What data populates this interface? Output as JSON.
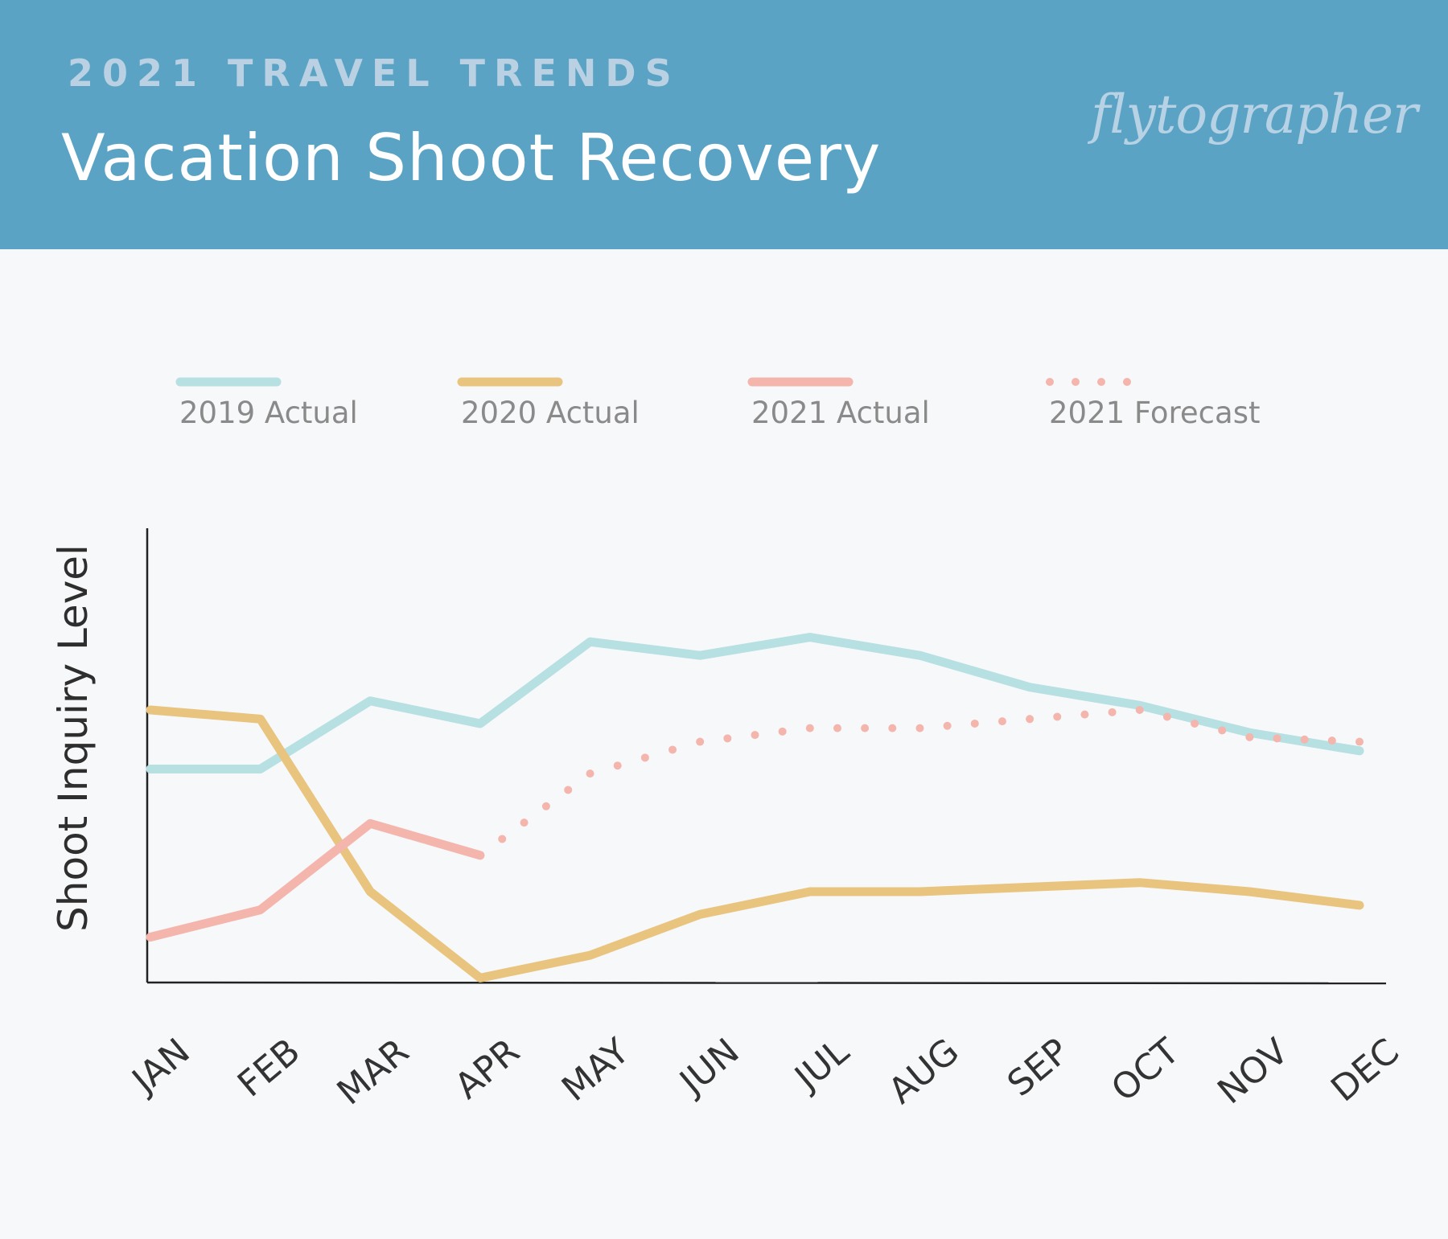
{
  "header": {
    "eyebrow": "2021 TRAVEL TRENDS",
    "title": "Vacation Shoot Recovery",
    "logo_text": "flytographer",
    "background_color": "#5ba3c5"
  },
  "chart_data": {
    "type": "line",
    "title": "Vacation Shoot Recovery",
    "xlabel": "",
    "ylabel": "Shoot Inquiry Level",
    "ylim": [
      0,
      100
    ],
    "y_ticks_labeled": false,
    "grid": false,
    "legend_placement": "top",
    "categories": [
      "JAN",
      "FEB",
      "MAR",
      "APR",
      "MAY",
      "JUN",
      "JUL",
      "AUG",
      "SEP",
      "OCT",
      "NOV",
      "DEC"
    ],
    "series": [
      {
        "name": "2019 Actual",
        "color": "#b6e0e2",
        "style": "solid",
        "values": [
          47,
          47,
          62,
          57,
          75,
          72,
          76,
          72,
          65,
          61,
          55,
          51
        ]
      },
      {
        "name": "2020 Actual",
        "color": "#e8c47f",
        "style": "solid",
        "values": [
          60,
          58,
          20,
          1,
          6,
          15,
          20,
          20,
          21,
          22,
          20,
          17
        ]
      },
      {
        "name": "2021 Actual",
        "color": "#f4b5ad",
        "style": "solid",
        "values": [
          10,
          16,
          35,
          28,
          null,
          null,
          null,
          null,
          null,
          null,
          null,
          null
        ]
      },
      {
        "name": "2021 Forecast",
        "color": "#f4b5ad",
        "style": "dotted",
        "values": [
          null,
          null,
          null,
          28,
          46,
          53,
          56,
          56,
          58,
          60,
          54,
          53
        ]
      }
    ]
  }
}
